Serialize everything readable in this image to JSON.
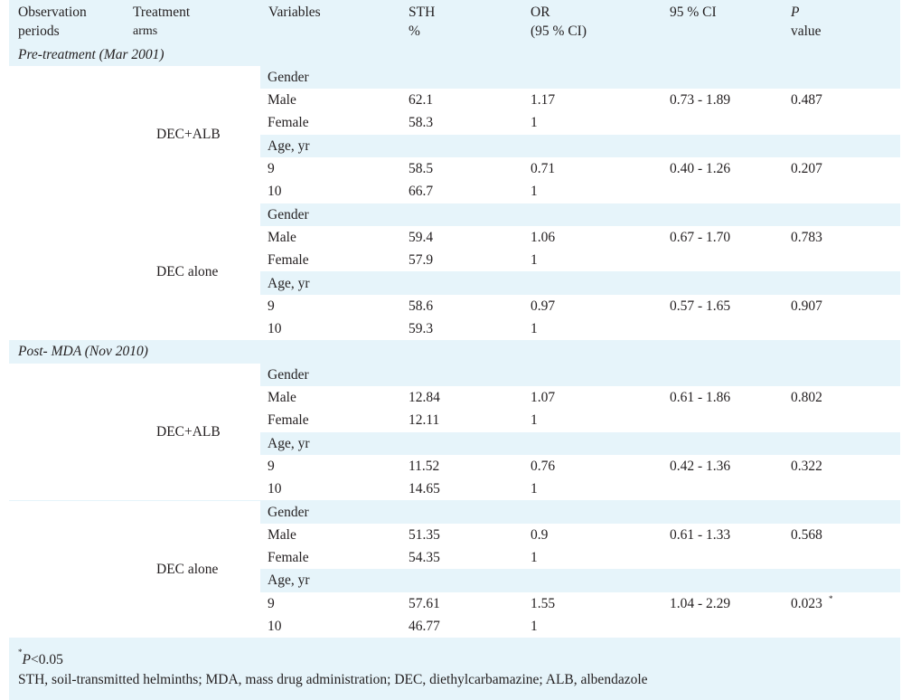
{
  "headers": {
    "col1": [
      "Observation",
      "periods"
    ],
    "col2": [
      "Treatment",
      "arms"
    ],
    "col3": "Variables",
    "col4": [
      "STH",
      "%"
    ],
    "col5": [
      "OR",
      "(95 % CI)"
    ],
    "col6": "95 % CI",
    "col7": [
      "P",
      "value"
    ]
  },
  "sections": [
    {
      "title": "Pre-treatment (Mar 2001)",
      "arms": [
        {
          "name": "DEC+ALB",
          "rows": [
            {
              "var": "Gender",
              "sth": "",
              "or": "",
              "ci": "",
              "p": "",
              "sup": ""
            },
            {
              "var": "Male",
              "sth": "62.1",
              "or": "1.17",
              "ci": "0.73 - 1.89",
              "p": "0.487",
              "sup": ""
            },
            {
              "var": "Female",
              "sth": "58.3",
              "or": "1",
              "ci": "",
              "p": "",
              "sup": ""
            },
            {
              "var": "Age, yr",
              "sth": "",
              "or": "",
              "ci": "",
              "p": "",
              "sup": ""
            },
            {
              "var": "9",
              "sth": "58.5",
              "or": "0.71",
              "ci": "0.40 - 1.26",
              "p": "0.207",
              "sup": ""
            },
            {
              "var": "10",
              "sth": "66.7",
              "or": "1",
              "ci": "",
              "p": "",
              "sup": ""
            }
          ]
        },
        {
          "name": "DEC alone",
          "rows": [
            {
              "var": "Gender",
              "sth": "",
              "or": "",
              "ci": "",
              "p": "",
              "sup": ""
            },
            {
              "var": "Male",
              "sth": "59.4",
              "or": "1.06",
              "ci": "0.67 - 1.70",
              "p": "0.783",
              "sup": ""
            },
            {
              "var": "Female",
              "sth": "57.9",
              "or": "1",
              "ci": "",
              "p": "",
              "sup": ""
            },
            {
              "var": "Age, yr",
              "sth": "",
              "or": "",
              "ci": "",
              "p": "",
              "sup": ""
            },
            {
              "var": "9",
              "sth": "58.6",
              "or": "0.97",
              "ci": "0.57 - 1.65",
              "p": "0.907",
              "sup": ""
            },
            {
              "var": "10",
              "sth": "59.3",
              "or": "1",
              "ci": "",
              "p": "",
              "sup": ""
            }
          ]
        }
      ]
    },
    {
      "title": "Post- MDA (Nov 2010)",
      "arms": [
        {
          "name": "DEC+ALB",
          "rows": [
            {
              "var": "Gender",
              "sth": "",
              "or": "",
              "ci": "",
              "p": "",
              "sup": ""
            },
            {
              "var": "Male",
              "sth": "12.84",
              "or": "1.07",
              "ci": "0.61 - 1.86",
              "p": "0.802",
              "sup": ""
            },
            {
              "var": "Female",
              "sth": "12.11",
              "or": "1",
              "ci": "",
              "p": "",
              "sup": ""
            },
            {
              "var": "Age, yr",
              "sth": "",
              "or": "",
              "ci": "",
              "p": "",
              "sup": ""
            },
            {
              "var": "9",
              "sth": "11.52",
              "or": "0.76",
              "ci": "0.42 - 1.36",
              "p": "0.322",
              "sup": ""
            },
            {
              "var": "10",
              "sth": "14.65",
              "or": "1",
              "ci": "",
              "p": "",
              "sup": ""
            }
          ]
        },
        {
          "name": "DEC alone",
          "rows": [
            {
              "var": "Gender",
              "sth": "",
              "or": "",
              "ci": "",
              "p": "",
              "sup": ""
            },
            {
              "var": "Male",
              "sth": "51.35",
              "or": "0.9",
              "ci": "0.61 - 1.33",
              "p": "0.568",
              "sup": ""
            },
            {
              "var": "Female",
              "sth": "54.35",
              "or": "1",
              "ci": "",
              "p": "",
              "sup": ""
            },
            {
              "var": "Age, yr",
              "sth": "",
              "or": "",
              "ci": "",
              "p": "",
              "sup": ""
            },
            {
              "var": "9",
              "sth": "57.61",
              "or": "1.55",
              "ci": "1.04 - 2.29",
              "p": "0.023",
              "sup": "*"
            },
            {
              "var": "10",
              "sth": "46.77",
              "or": "1",
              "ci": "",
              "p": "",
              "sup": ""
            }
          ]
        }
      ]
    }
  ],
  "footnotes": {
    "sig_sup": "*",
    "sig_text": "P",
    "sig_rest": "<0.05",
    "abbrev": "STH, soil-transmitted helminths; MDA, mass drug administration; DEC, diethylcarbamazine; ALB, albendazole"
  },
  "colors": {
    "band": "#e6f4fa",
    "text": "#231f20"
  }
}
